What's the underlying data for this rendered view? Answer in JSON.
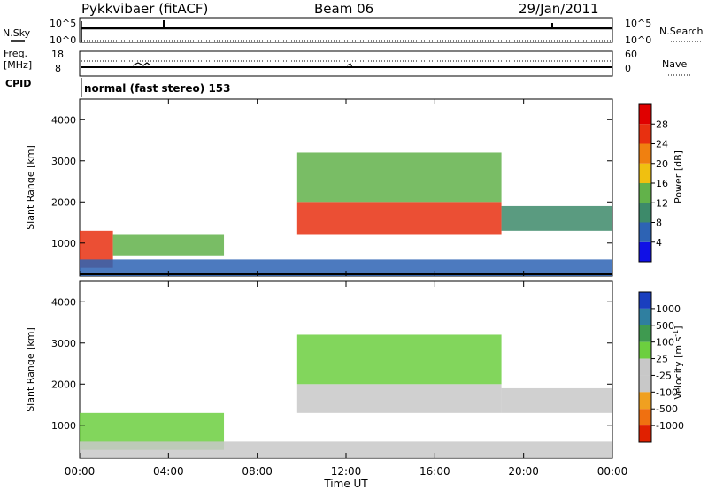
{
  "header": {
    "station": "Pykkvibaer (fitACF)",
    "beam": "Beam 06",
    "date": "29/Jan/2011"
  },
  "strip_labels": {
    "nsky": "N.Sky",
    "nsky_ticks": [
      "10^5",
      "10^0"
    ],
    "nsearch": "N.Search",
    "nsearch_ticks": [
      "10^5",
      "10^0"
    ],
    "freq": "Freq.",
    "freq_unit": "[MHz]",
    "freq_ticks": [
      "18",
      "8"
    ],
    "nave": "Nave",
    "nave_ticks": [
      "60",
      "0"
    ],
    "cpid": "CPID",
    "cpid_value": "normal (fast stereo) 153"
  },
  "time_axis": {
    "title": "Time UT",
    "ticks": [
      "00:00",
      "04:00",
      "08:00",
      "12:00",
      "16:00",
      "20:00",
      "00:00"
    ]
  },
  "range_axis": {
    "title": "Slant Range [km]",
    "ticks": [
      "1000",
      "2000",
      "3000",
      "4000"
    ]
  },
  "colorbars": {
    "power": {
      "title": "Power [dB]",
      "ticks": [
        "4",
        "8",
        "12",
        "16",
        "20",
        "24",
        "28"
      ],
      "colors": [
        "#1010e6",
        "#2d63b4",
        "#3d8a6a",
        "#62b24a",
        "#f0c010",
        "#f08010",
        "#e83010",
        "#e00000"
      ]
    },
    "velocity": {
      "title": "Velocity [m s",
      "title_sup": "-1",
      "title_end": "]",
      "ticks": [
        "1000",
        "500",
        "100",
        "25",
        "-25",
        "-100",
        "-500",
        "-1000"
      ],
      "colors": [
        "#1a3fbf",
        "#2f7fa0",
        "#3f9a50",
        "#6ccf3f",
        "#c8c8c8",
        "#c8c8c8",
        "#f0a020",
        "#f07010",
        "#e02000"
      ]
    }
  },
  "chart_data": [
    {
      "type": "heatmap",
      "name": "power",
      "x": "Time UT (hours)",
      "y": "Slant Range [km]",
      "xlim": [
        0,
        24
      ],
      "ylim": [
        200,
        4500
      ],
      "value_range": [
        0,
        30
      ],
      "regions": [
        {
          "t": [
            0.0,
            1.5
          ],
          "r": [
            400,
            1300
          ],
          "level": 26
        },
        {
          "t": [
            1.5,
            6.5
          ],
          "r": [
            700,
            1200
          ],
          "level": 14
        },
        {
          "t": [
            9.8,
            19.0
          ],
          "r": [
            1200,
            2000
          ],
          "level": 24
        },
        {
          "t": [
            9.8,
            19.0
          ],
          "r": [
            2000,
            3200
          ],
          "level": 12
        },
        {
          "t": [
            19.0,
            24.0
          ],
          "r": [
            1300,
            1900
          ],
          "level": 10
        },
        {
          "t": [
            0.0,
            24.0
          ],
          "r": [
            200,
            600
          ],
          "level": 6
        }
      ]
    },
    {
      "type": "heatmap",
      "name": "velocity",
      "x": "Time UT (hours)",
      "y": "Slant Range [km]",
      "xlim": [
        0,
        24
      ],
      "ylim": [
        200,
        4500
      ],
      "value_range": [
        -1000,
        1000
      ],
      "regions": [
        {
          "t": [
            0.0,
            6.5
          ],
          "r": [
            400,
            1300
          ],
          "value": 50
        },
        {
          "t": [
            9.8,
            19.0
          ],
          "r": [
            1300,
            2000
          ],
          "value": 0
        },
        {
          "t": [
            9.8,
            19.0
          ],
          "r": [
            2000,
            3200
          ],
          "value": 80
        },
        {
          "t": [
            19.0,
            24.0
          ],
          "r": [
            1300,
            1900
          ],
          "value": 0
        },
        {
          "t": [
            0.0,
            24.0
          ],
          "r": [
            200,
            600
          ],
          "value": -100
        }
      ]
    }
  ]
}
